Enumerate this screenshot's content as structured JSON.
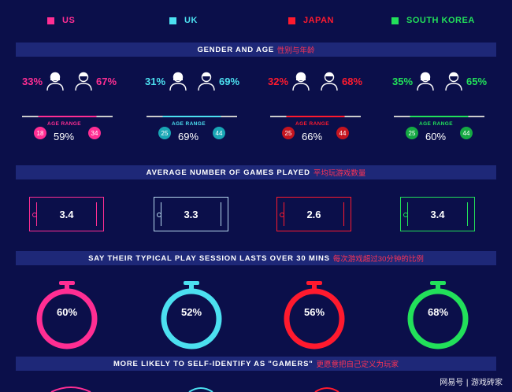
{
  "legend": [
    {
      "name": "US",
      "color": "#ff2e93"
    },
    {
      "name": "UK",
      "color": "#4ce0f0"
    },
    {
      "name": "JAPAN",
      "color": "#ff1a2e"
    },
    {
      "name": "SOUTH KOREA",
      "color": "#22e05a"
    }
  ],
  "sections": {
    "gender_title": "GENDER AND AGE",
    "gender_title_cn": "性别与年龄",
    "games_title": "AVERAGE NUMBER OF GAMES PLAYED",
    "games_title_cn": "平均玩游戏数量",
    "session_title": "SAY THEIR TYPICAL PLAY SESSION LASTS OVER 30 MINS",
    "session_title_cn": "每次游戏超过30分钟的比例",
    "gamers_title": "MORE LIKELY TO SELF-IDENTIFY AS \"GAMERS\"",
    "gamers_title_cn": "更愿意把自己定义为玩家"
  },
  "countries": [
    {
      "female": "33%",
      "male": "67%",
      "age_label": "AGE RANGE",
      "age_min": "18",
      "age_max": "34",
      "age_pct": "59%",
      "games": "3.4",
      "session": "60%",
      "color": "#ff2e93"
    },
    {
      "female": "31%",
      "male": "69%",
      "age_label": "AGE RANGE",
      "age_min": "25",
      "age_max": "44",
      "age_pct": "69%",
      "games": "3.3",
      "session": "52%",
      "color": "#4ce0f0"
    },
    {
      "female": "32%",
      "male": "68%",
      "age_label": "AGE RANGE",
      "age_min": "25",
      "age_max": "44",
      "age_pct": "66%",
      "games": "2.6",
      "session": "56%",
      "color": "#ff1a2e"
    },
    {
      "female": "35%",
      "male": "65%",
      "age_label": "AGE RANGE",
      "age_min": "25",
      "age_max": "44",
      "age_pct": "60%",
      "games": "3.4",
      "session": "68%",
      "color": "#22e05a"
    }
  ],
  "watermark": "网易号 | 游戏砖家"
}
